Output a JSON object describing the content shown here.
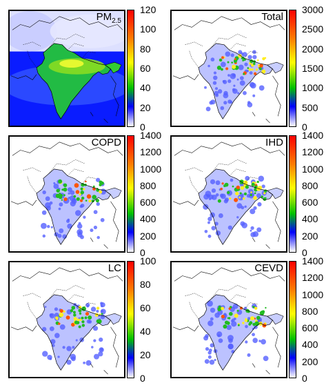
{
  "panels": [
    {
      "title_main": "PM",
      "title_sub": "2.5",
      "ticks": [
        "120",
        "100",
        "80",
        "60",
        "40",
        "20",
        "0"
      ],
      "background": "fields"
    },
    {
      "title_main": "Total",
      "title_sub": "",
      "ticks": [
        "3000",
        "2500",
        "2000",
        "1500",
        "1000",
        "500",
        "0"
      ],
      "background": "india"
    },
    {
      "title_main": "COPD",
      "title_sub": "",
      "ticks": [
        "1400",
        "1200",
        "1000",
        "800",
        "600",
        "400",
        "200",
        "0"
      ],
      "background": "india"
    },
    {
      "title_main": "IHD",
      "title_sub": "",
      "ticks": [
        "1400",
        "1200",
        "1000",
        "800",
        "600",
        "400",
        "200",
        "0"
      ],
      "background": "india"
    },
    {
      "title_main": "LC",
      "title_sub": "",
      "ticks": [
        "100",
        "80",
        "60",
        "40",
        "20",
        "0"
      ],
      "background": "india"
    },
    {
      "title_main": "CEVD",
      "title_sub": "",
      "ticks": [
        "1400",
        "1200",
        "1000",
        "800",
        "600",
        "400",
        "200",
        "0"
      ],
      "background": "india"
    }
  ],
  "colors": {
    "scale": [
      "#ffffff",
      "#8888ff",
      "#0000ff",
      "#00c000",
      "#ffff00",
      "#ff8000",
      "#ff0000"
    ],
    "ocean_low": "#0a1cff",
    "land_high": "#33cc33"
  }
}
